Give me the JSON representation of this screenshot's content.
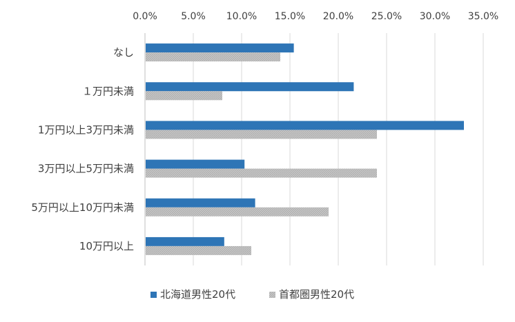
{
  "chart_data": {
    "type": "bar",
    "orientation": "horizontal",
    "categories": [
      "なし",
      "１万円未満",
      "1万円以上3万円未満",
      "3万円以上5万円未満",
      "5万円以上10万円未満",
      "10万円以上"
    ],
    "series": [
      {
        "name": "北海道男性20代",
        "values": [
          15.4,
          21.6,
          33.0,
          10.3,
          11.4,
          8.2
        ],
        "color": "#2e75b6",
        "pattern": "solid"
      },
      {
        "name": "首都圏男性20代",
        "values": [
          14.0,
          8.0,
          24.0,
          24.0,
          19.0,
          11.0
        ],
        "color": "#bfbfbf",
        "pattern": "hatched"
      }
    ],
    "xlim": [
      0,
      35
    ],
    "x_ticks": [
      "0.0%",
      "5.0%",
      "10.0%",
      "15.0%",
      "20.0%",
      "25.0%",
      "30.0%",
      "35.0%"
    ],
    "axis_position": "top",
    "grid": true,
    "legend_position": "bottom"
  }
}
